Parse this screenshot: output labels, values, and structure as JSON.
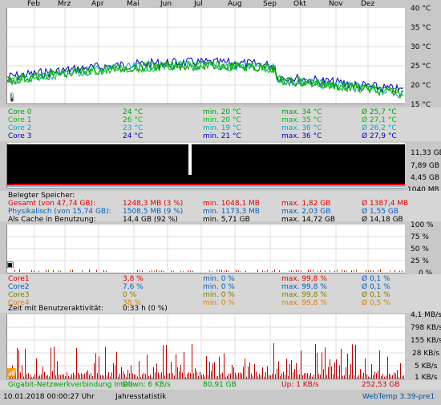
{
  "months": [
    "Feb",
    "Mrz",
    "Apr",
    "Mai",
    "Jun",
    "Jul",
    "Aug",
    "Sep",
    "Okt",
    "Nov",
    "Dez"
  ],
  "temp_panel": {
    "y_labels": [
      "40 °C",
      "35 °C",
      "30 °C",
      "25 °C",
      "20 °C",
      "15 °C"
    ],
    "rows": [
      {
        "name": "Core 0",
        "current": "24 °C",
        "min": "min. 20 °C",
        "max": "max. 34 °C",
        "avg": "Ø 25,7 °C",
        "color": "#00a000"
      },
      {
        "name": "Core 1",
        "current": "26 °C",
        "min": "min. 20 °C",
        "max": "max. 35 °C",
        "avg": "Ø 27,1 °C",
        "color": "#00c000"
      },
      {
        "name": "Core 2",
        "current": "23 °C",
        "min": "min. 19 °C",
        "max": "max. 36 °C",
        "avg": "Ø 26,2 °C",
        "color": "#00b0b0"
      },
      {
        "name": "Core 3",
        "current": "24 °C",
        "min": "min. 21 °C",
        "max": "max. 36 °C",
        "avg": "Ø 27,9 °C",
        "color": "#0000c0"
      }
    ]
  },
  "mem_panel": {
    "y_labels": [
      "11,33 GB",
      "7,89 GB",
      "4,45 GB",
      "1040 MB"
    ],
    "title": "Belegter Speicher:",
    "rows": [
      {
        "name": "Gesamt (von 47,74 GB):",
        "current": "1248,3 MB (3 %)",
        "min": "min. 1048,1 MB",
        "max": "max. 1,82 GB",
        "avg": "Ø 1387,4 MB",
        "color": "#e00000"
      },
      {
        "name": "Physikalisch (von 15,74 GB):",
        "current": "1508,5 MB (9 %)",
        "min": "min. 1173,3 MB",
        "max": "max. 2,03 GB",
        "avg": "Ø 1,55 GB",
        "color": "#0060c0"
      },
      {
        "name": "Als Cache in Benutzung:",
        "current": "14,4 GB (92 %)",
        "min": "min. 5,71 GB",
        "max": "max. 14,72 GB",
        "avg": "Ø 14,18 GB",
        "color": "#000000"
      }
    ]
  },
  "cpu_panel": {
    "y_labels": [
      "100 %",
      "75 %",
      "50 %",
      "25 %",
      "0 %"
    ],
    "rows": [
      {
        "name": "Core1",
        "current": "3,8 %",
        "min": "min. 0 %",
        "max": "max. 99,8 %",
        "avg": "Ø 0,1 %",
        "color": "#e00000"
      },
      {
        "name": "Core2",
        "current": "7,6 %",
        "min": "min. 0 %",
        "max": "max. 99,8 %",
        "avg": "Ø 0,1 %",
        "color": "#0060c0"
      },
      {
        "name": "Core3",
        "current": "0 %",
        "min": "min. 0 %",
        "max": "max. 99,8 %",
        "avg": "Ø 0,1 %",
        "color": "#808000"
      },
      {
        "name": "Core4",
        "current": "38 %",
        "min": "min. 0 %",
        "max": "max. 99,8 %",
        "avg": "Ø 0,5 %",
        "color": "#e08000"
      }
    ],
    "activity_label": "Zeit mit Benutzeraktivität:",
    "activity_value": "0:33 h (0 %)"
  },
  "net_panel": {
    "y_labels": [
      "4,1 MB/s",
      "798 KB/s",
      "155 KB/s",
      "28 KB/s",
      "5 KB/s",
      "1 KB/s"
    ],
    "name": "Gigabit-Netzwerkverbindung Intel(",
    "down": "Down: 6 KB/s",
    "down_avg": "80,91 GB",
    "up": "Up: 1 KB/s",
    "up_avg": "252,53 GB"
  },
  "footer": {
    "datetime": "10.01.2018 00:00:27 Uhr",
    "mode": "Jahresstatistik",
    "app": "WebTemp 3.39-pre1"
  }
}
